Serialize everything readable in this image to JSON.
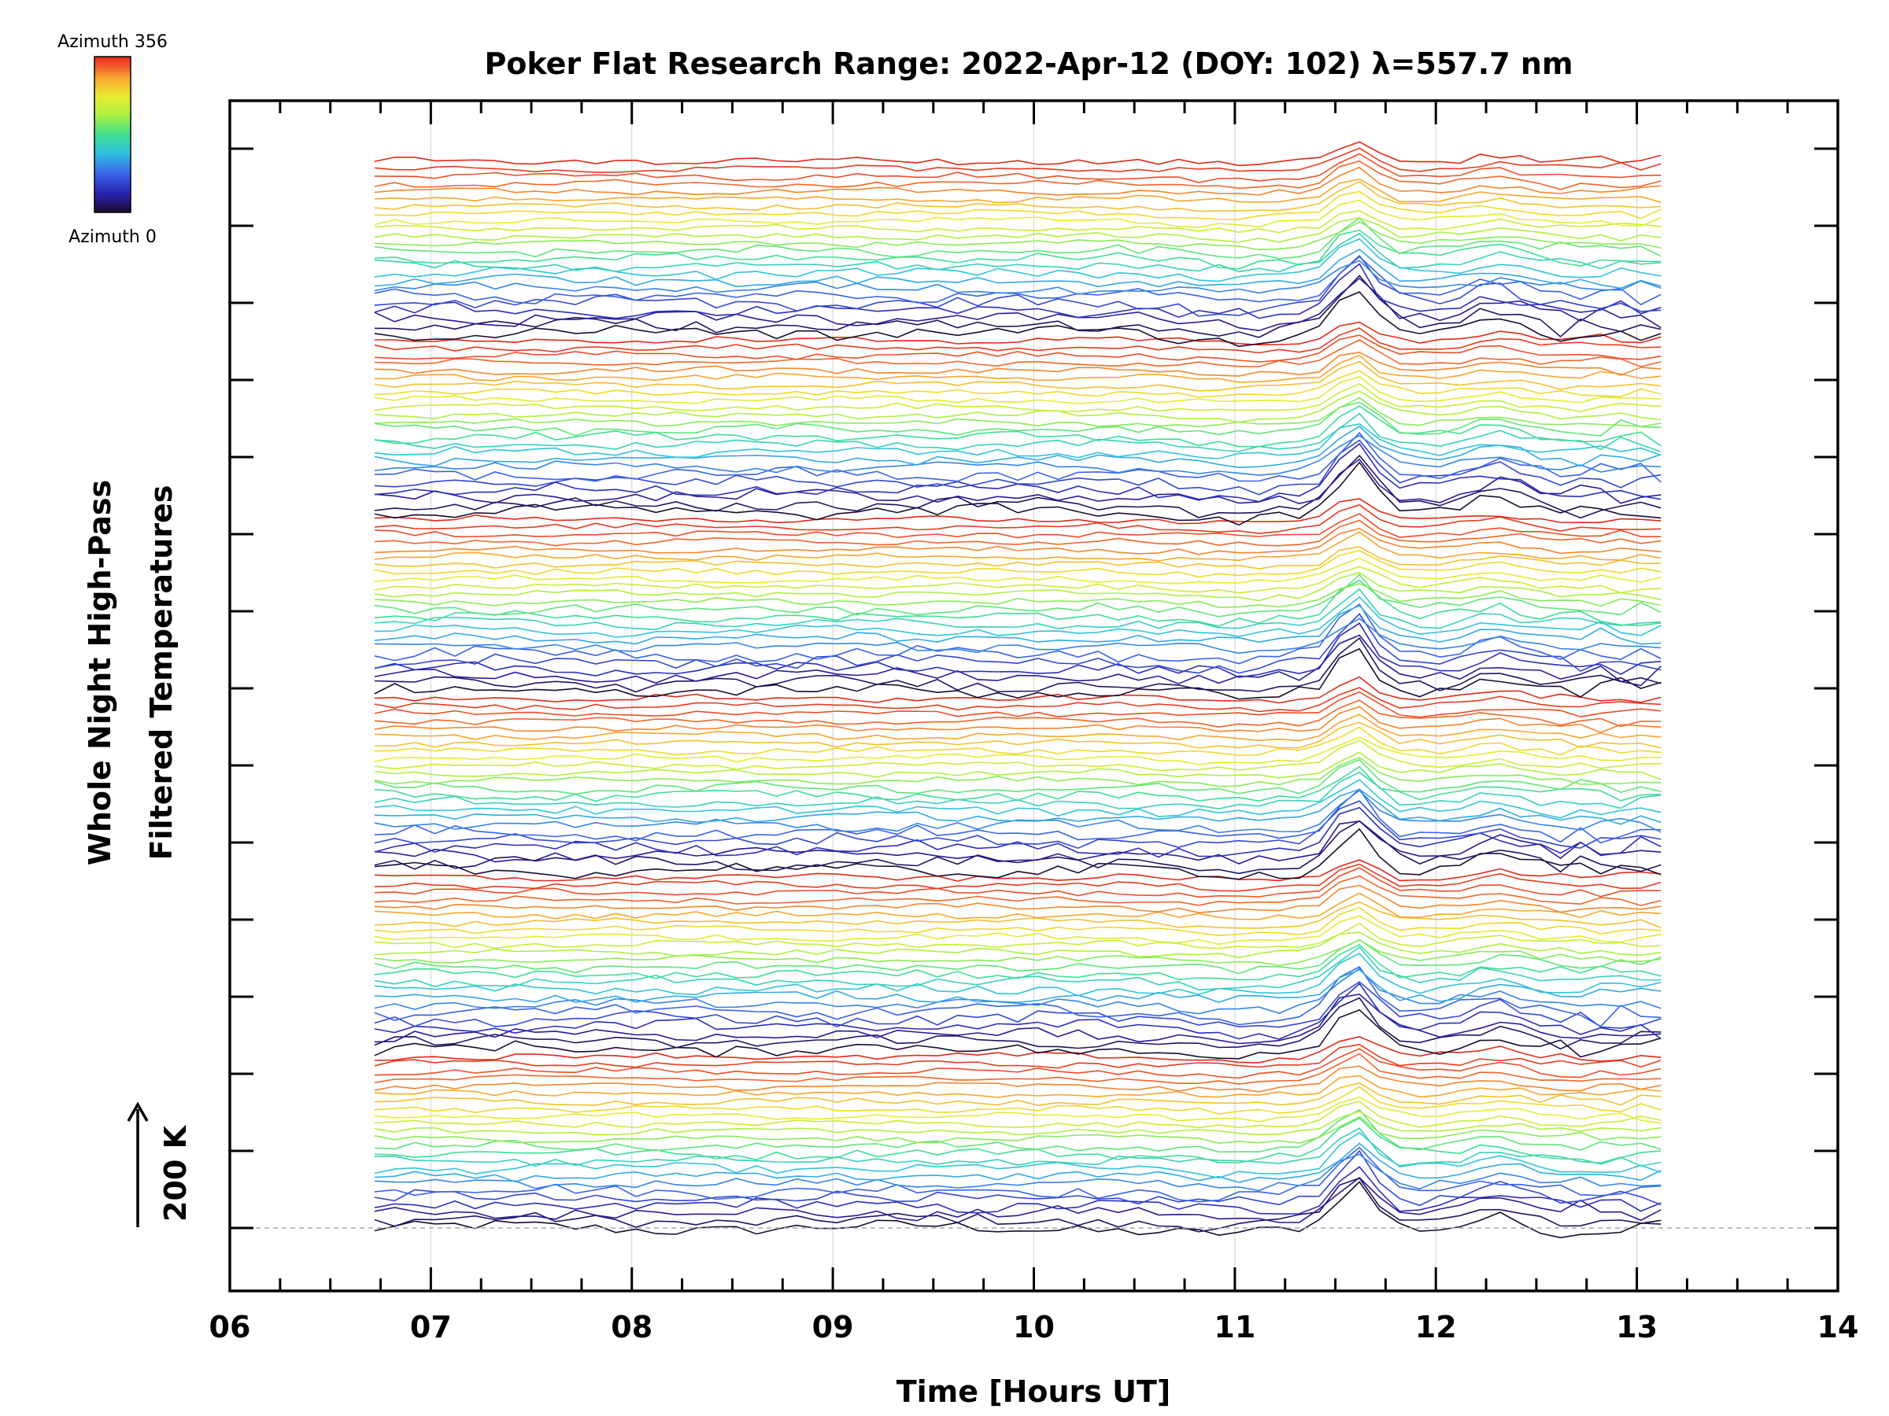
{
  "chart_data": {
    "type": "line",
    "title": "Poker Flat Research Range: 2022-Apr-12 (DOY: 102) λ=557.7 nm",
    "xlabel": "Time [Hours UT]",
    "ylabel_line1": "Whole Night High-Pass",
    "ylabel_line2": "Filtered Temperatures",
    "xlim": [
      6,
      14
    ],
    "x_ticks": [
      "06",
      "07",
      "08",
      "09",
      "10",
      "11",
      "12",
      "13",
      "14"
    ],
    "y_scale_label": "200 K",
    "colorbar": {
      "max_label": "Azimuth 356",
      "min_label": "Azimuth 0"
    },
    "colormap": [
      "#1a0d2e",
      "#2a22b0",
      "#3a66e8",
      "#2fc0e0",
      "#40e090",
      "#a8f040",
      "#e8ec30",
      "#f8a830",
      "#f0582a",
      "#e02a1a"
    ],
    "grid": true,
    "series_count": 144,
    "x_start": 6.72,
    "x_end": 13.15,
    "sample_step_hours": 0.1
  }
}
